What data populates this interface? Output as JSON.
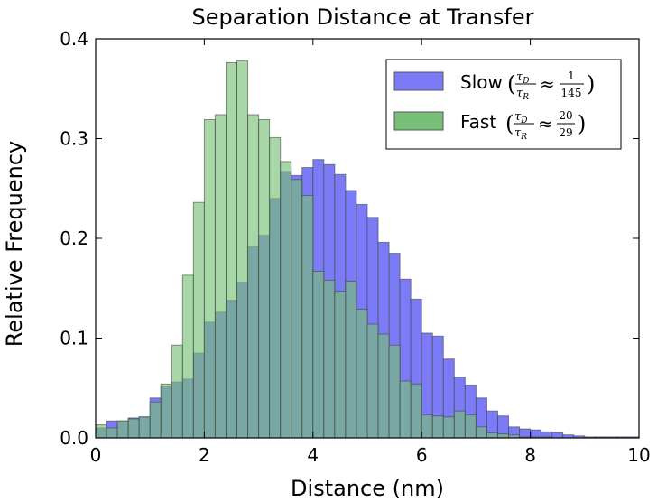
{
  "chart_data": {
    "type": "bar",
    "title": "Separation Distance at Transfer",
    "xlabel": "Distance (nm)",
    "ylabel": "Relative Frequency",
    "xlim": [
      0,
      10
    ],
    "ylim": [
      0,
      0.4
    ],
    "xticks": [
      "0",
      "2",
      "4",
      "6",
      "8",
      "10"
    ],
    "yticks": [
      "0.0",
      "0.1",
      "0.2",
      "0.3",
      "0.4"
    ],
    "bin_width": 0.2,
    "bin_starts": [
      0.0,
      0.2,
      0.4,
      0.6,
      0.8,
      1.0,
      1.2,
      1.4,
      1.6,
      1.8,
      2.0,
      2.2,
      2.4,
      2.6,
      2.8,
      3.0,
      3.2,
      3.4,
      3.6,
      3.8,
      4.0,
      4.2,
      4.4,
      4.6,
      4.8,
      5.0,
      5.2,
      5.4,
      5.6,
      5.8,
      6.0,
      6.2,
      6.4,
      6.6,
      6.8,
      7.0,
      7.2,
      7.4,
      7.6,
      7.8,
      8.0,
      8.2,
      8.4,
      8.6,
      8.8,
      9.0,
      9.2,
      9.4,
      9.6,
      9.8
    ],
    "legend_position": "upper right",
    "series": [
      {
        "name": "Slow",
        "ratio_num": "1",
        "ratio_den": "145",
        "color": "#7b7bf7",
        "values": [
          0.01,
          0.017,
          0.017,
          0.02,
          0.021,
          0.04,
          0.051,
          0.056,
          0.059,
          0.085,
          0.116,
          0.126,
          0.138,
          0.156,
          0.192,
          0.203,
          0.24,
          0.267,
          0.263,
          0.271,
          0.279,
          0.274,
          0.264,
          0.248,
          0.234,
          0.221,
          0.196,
          0.185,
          0.159,
          0.139,
          0.105,
          0.102,
          0.079,
          0.061,
          0.053,
          0.04,
          0.027,
          0.022,
          0.011,
          0.009,
          0.008,
          0.006,
          0.005,
          0.003,
          0.002,
          0.001,
          0.001,
          0.001,
          0.001,
          0.001
        ]
      },
      {
        "name": "Fast",
        "ratio_num": "20",
        "ratio_den": "29",
        "color": "#78c078",
        "values": [
          0.013,
          0.01,
          0.017,
          0.019,
          0.021,
          0.036,
          0.054,
          0.093,
          0.163,
          0.236,
          0.319,
          0.324,
          0.376,
          0.378,
          0.324,
          0.319,
          0.301,
          0.277,
          0.259,
          0.243,
          0.167,
          0.158,
          0.147,
          0.157,
          0.129,
          0.114,
          0.104,
          0.093,
          0.057,
          0.054,
          0.023,
          0.022,
          0.021,
          0.027,
          0.023,
          0.011,
          0.005,
          0.004,
          0.003,
          0.001,
          0.001,
          0.001,
          0.0,
          0.0,
          0.0,
          0.0,
          0.0,
          0.0,
          0.0,
          0.0
        ]
      }
    ]
  }
}
